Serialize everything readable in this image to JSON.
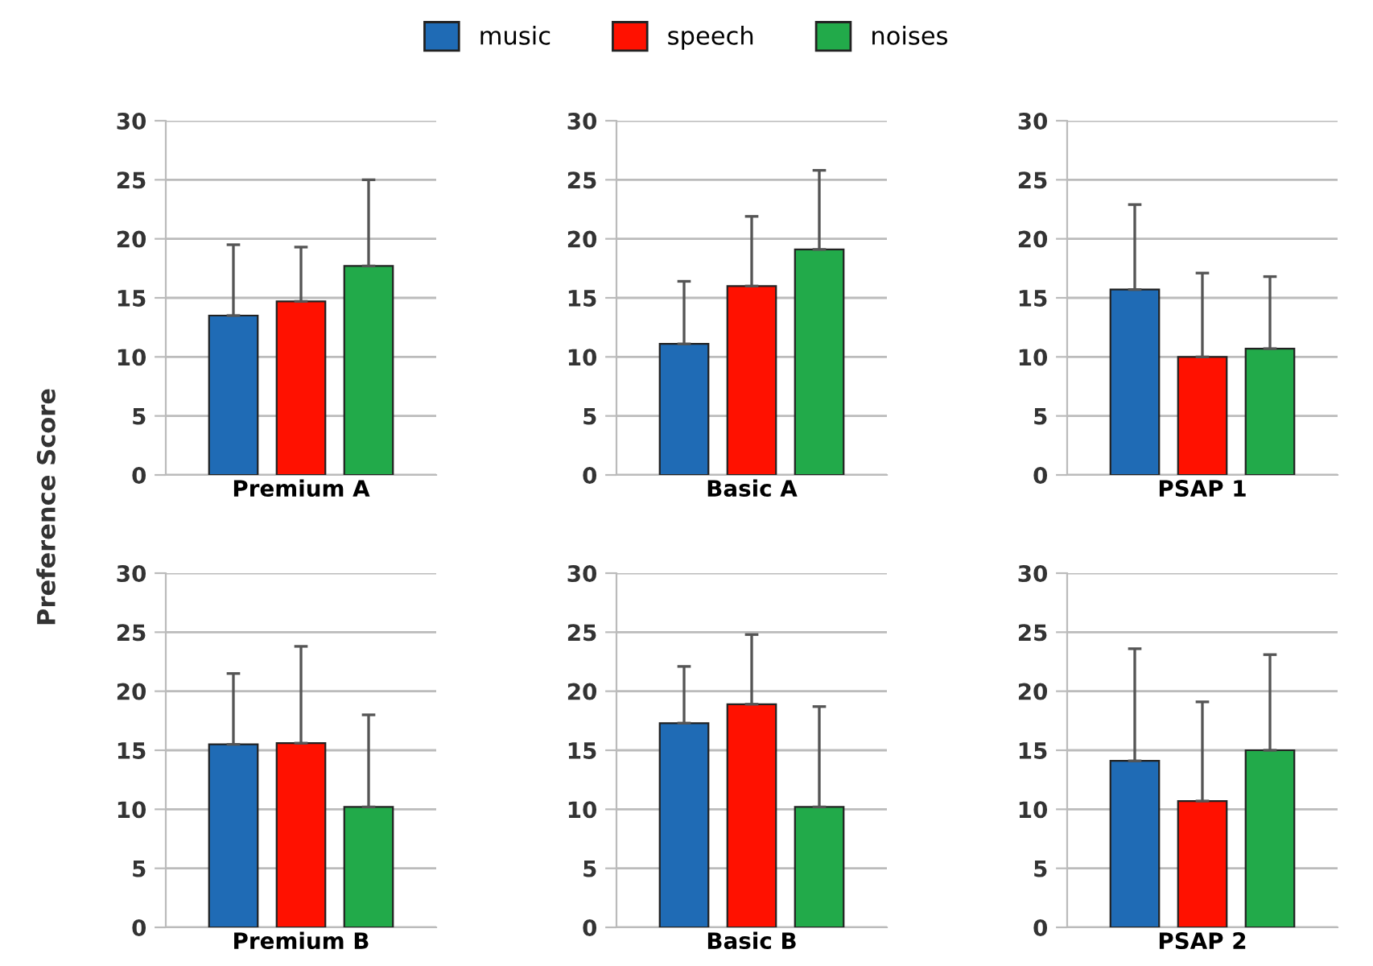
{
  "chart_data": [
    {
      "type": "bar",
      "categories": [
        "Premium A"
      ],
      "ylabel": "Preference Score",
      "legend": "top",
      "grid": "y",
      "ylim": [
        0,
        30
      ],
      "yticks": [
        0,
        5,
        10,
        15,
        20,
        25,
        30
      ],
      "series": [
        {
          "name": "music",
          "color": "#1f6bb5",
          "values": [
            13.5
          ],
          "errors": [
            [
              13.5,
              19.5
            ]
          ]
        },
        {
          "name": "speech",
          "color": "#ff1100",
          "values": [
            14.7
          ],
          "errors": [
            [
              14.7,
              19.3
            ]
          ]
        },
        {
          "name": "noises",
          "color": "#22aa4a",
          "values": [
            17.7
          ],
          "errors": [
            [
              17.7,
              25
            ]
          ]
        }
      ]
    },
    {
      "type": "bar",
      "categories": [
        "Basic A"
      ],
      "grid": "y",
      "ylim": [
        0,
        30
      ],
      "yticks": [
        0,
        5,
        10,
        15,
        20,
        25,
        30
      ],
      "series": [
        {
          "name": "music",
          "color": "#1f6bb5",
          "values": [
            11.1
          ],
          "errors": [
            [
              11.1,
              16.4
            ]
          ]
        },
        {
          "name": "speech",
          "color": "#ff1100",
          "values": [
            16.0
          ],
          "errors": [
            [
              16.0,
              21.9
            ]
          ]
        },
        {
          "name": "noises",
          "color": "#22aa4a",
          "values": [
            19.1
          ],
          "errors": [
            [
              19.1,
              25.8
            ]
          ]
        }
      ]
    },
    {
      "type": "bar",
      "categories": [
        "PSAP 1"
      ],
      "grid": "y",
      "ylim": [
        0,
        30
      ],
      "yticks": [
        0,
        5,
        10,
        15,
        20,
        25,
        30
      ],
      "series": [
        {
          "name": "music",
          "color": "#1f6bb5",
          "values": [
            15.7
          ],
          "errors": [
            [
              15.7,
              22.9
            ]
          ]
        },
        {
          "name": "speech",
          "color": "#ff1100",
          "values": [
            10.0
          ],
          "errors": [
            [
              10.0,
              17.1
            ]
          ]
        },
        {
          "name": "noises",
          "color": "#22aa4a",
          "values": [
            10.7
          ],
          "errors": [
            [
              10.7,
              16.8
            ]
          ]
        }
      ]
    },
    {
      "type": "bar",
      "categories": [
        "Premium B"
      ],
      "grid": "y",
      "ylim": [
        0,
        30
      ],
      "yticks": [
        0,
        5,
        10,
        15,
        20,
        25,
        30
      ],
      "series": [
        {
          "name": "music",
          "color": "#1f6bb5",
          "values": [
            15.5
          ],
          "errors": [
            [
              15.5,
              21.5
            ]
          ]
        },
        {
          "name": "speech",
          "color": "#ff1100",
          "values": [
            15.6
          ],
          "errors": [
            [
              15.6,
              23.8
            ]
          ]
        },
        {
          "name": "noises",
          "color": "#22aa4a",
          "values": [
            10.2
          ],
          "errors": [
            [
              10.2,
              18.0
            ]
          ]
        }
      ]
    },
    {
      "type": "bar",
      "categories": [
        "Basic B"
      ],
      "grid": "y",
      "ylim": [
        0,
        30
      ],
      "yticks": [
        0,
        5,
        10,
        15,
        20,
        25,
        30
      ],
      "series": [
        {
          "name": "music",
          "color": "#1f6bb5",
          "values": [
            17.3
          ],
          "errors": [
            [
              17.3,
              22.1
            ]
          ]
        },
        {
          "name": "speech",
          "color": "#ff1100",
          "values": [
            18.9
          ],
          "errors": [
            [
              18.9,
              24.8
            ]
          ]
        },
        {
          "name": "noises",
          "color": "#22aa4a",
          "values": [
            10.2
          ],
          "errors": [
            [
              10.2,
              18.7
            ]
          ]
        }
      ]
    },
    {
      "type": "bar",
      "categories": [
        "PSAP 2"
      ],
      "grid": "y",
      "ylim": [
        0,
        30
      ],
      "yticks": [
        0,
        5,
        10,
        15,
        20,
        25,
        30
      ],
      "series": [
        {
          "name": "music",
          "color": "#1f6bb5",
          "values": [
            14.1
          ],
          "errors": [
            [
              14.1,
              23.6
            ]
          ]
        },
        {
          "name": "speech",
          "color": "#ff1100",
          "values": [
            10.7
          ],
          "errors": [
            [
              10.7,
              19.1
            ]
          ]
        },
        {
          "name": "noises",
          "color": "#22aa4a",
          "values": [
            15.0
          ],
          "errors": [
            [
              15.0,
              23.1
            ]
          ]
        }
      ]
    }
  ]
}
